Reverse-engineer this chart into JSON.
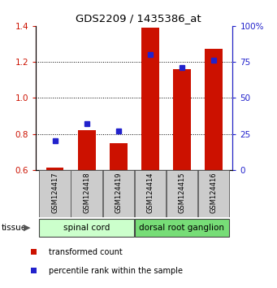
{
  "title": "GDS2209 / 1435386_at",
  "samples": [
    "GSM124417",
    "GSM124418",
    "GSM124419",
    "GSM124414",
    "GSM124415",
    "GSM124416"
  ],
  "groups": [
    {
      "name": "spinal cord",
      "indices": [
        0,
        1,
        2
      ],
      "color": "#ccffcc"
    },
    {
      "name": "dorsal root ganglion",
      "indices": [
        3,
        4,
        5
      ],
      "color": "#77dd77"
    }
  ],
  "transformed_count": [
    0.615,
    0.82,
    0.75,
    1.39,
    1.16,
    1.275
  ],
  "percentile_rank": [
    20,
    32,
    27,
    80,
    71,
    76
  ],
  "ylim_left": [
    0.6,
    1.4
  ],
  "ylim_right": [
    0,
    100
  ],
  "yticks_left": [
    0.6,
    0.8,
    1.0,
    1.2,
    1.4
  ],
  "yticks_right": [
    0,
    25,
    50,
    75,
    100
  ],
  "bar_color": "#cc1100",
  "dot_color": "#2222cc",
  "bar_bottom": 0.6,
  "legend_items": [
    {
      "label": "transformed count",
      "color": "#cc1100"
    },
    {
      "label": "percentile rank within the sample",
      "color": "#2222cc"
    }
  ],
  "tissue_label": "tissue",
  "grid_color": "#888888",
  "sample_box_color": "#cccccc"
}
